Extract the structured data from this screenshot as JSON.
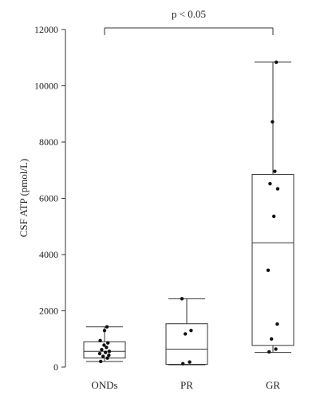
{
  "chart_data": {
    "type": "box",
    "ylabel": "CSF ATP (pmol/L)",
    "xlabel": "",
    "ylim": [
      0,
      12000
    ],
    "yticks": [
      0,
      2000,
      4000,
      6000,
      8000,
      10000,
      12000
    ],
    "grid": false,
    "annotation": {
      "text": "p < 0.05",
      "from": "ONDs",
      "to": "GR"
    },
    "categories": [
      "ONDs",
      "PR",
      "GR"
    ],
    "boxes": [
      {
        "name": "ONDs",
        "whisker_low": 200,
        "q1": 320,
        "median": 560,
        "q3": 900,
        "whisker_high": 1430,
        "points": [
          200,
          320,
          380,
          420,
          480,
          520,
          560,
          620,
          700,
          780,
          860,
          940,
          1300,
          1430
        ]
      },
      {
        "name": "PR",
        "whisker_low": 80,
        "q1": 100,
        "median": 640,
        "q3": 1540,
        "whisker_high": 2430,
        "points": [
          120,
          180,
          1180,
          1300,
          2430
        ]
      },
      {
        "name": "GR",
        "whisker_low": 520,
        "q1": 770,
        "median": 4420,
        "q3": 6850,
        "whisker_high": 10840,
        "points": [
          540,
          640,
          1000,
          1530,
          3440,
          5360,
          6340,
          6520,
          6960,
          8720,
          10840
        ]
      }
    ]
  }
}
